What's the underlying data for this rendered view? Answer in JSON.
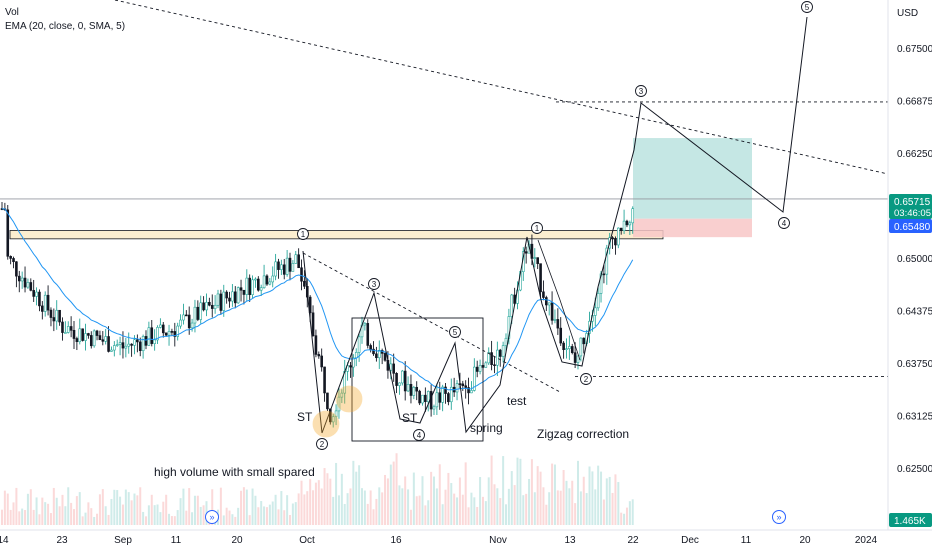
{
  "header": {
    "currency": "USD",
    "legend_volume": "Vol",
    "legend_ema": "EMA (20, close, 0, SMA, 5)"
  },
  "price_scale": {
    "labels": [
      "0.67500",
      "0.66875",
      "0.66250",
      "0.65000",
      "0.64375",
      "0.63750",
      "0.63125",
      "0.62500"
    ],
    "current_price": "0.65715",
    "countdown": "03:46:05",
    "ema_value": "0.65480",
    "volume_value": "1.465K"
  },
  "time_scale": {
    "labels": [
      "14",
      "23",
      "Sep",
      "11",
      "20",
      "Oct",
      "16",
      "Nov",
      "13",
      "22",
      "Dec",
      "11",
      "20",
      "2024"
    ]
  },
  "colors": {
    "up": "#26a69a",
    "down": "#ef5350",
    "candle_body": "#131722",
    "ema": "#2196f3",
    "price_tag": "#089981",
    "ema_tag": "#2962ff",
    "zone_fill": "#fbeed0",
    "target_fill": "#b2dfdb",
    "stop_fill": "#f8c7c7"
  },
  "annotations": {
    "st1": "ST",
    "st2": "ST",
    "spring": "spring",
    "test": "test",
    "zigzag": "Zigzag correction",
    "volume_note": "high volume with small spared",
    "wave_labels": [
      "1",
      "2",
      "3",
      "4",
      "5",
      "1",
      "2",
      "3",
      "4",
      "5"
    ]
  },
  "chart_data": {
    "type": "candlestick",
    "ylim": [
      0.6225,
      0.681
    ],
    "key_levels": {
      "resistance_zone": [
        0.6524,
        0.6534
      ],
      "upper_dashed": 0.6687,
      "lower_dashed": 0.636,
      "long_position": {
        "entry": 0.6548,
        "target": 0.6644,
        "stop": 0.6526
      }
    },
    "wave_points": [
      {
        "label": "1",
        "value": 0.6526
      },
      {
        "label": "2",
        "value": 0.6302
      },
      {
        "label": "3",
        "value": 0.6454
      },
      {
        "label": "4",
        "value": 0.631
      },
      {
        "label": "5",
        "value": 0.6398
      },
      {
        "label": "1",
        "value": 0.6532
      },
      {
        "label": "2",
        "value": 0.6368
      },
      {
        "label": "3",
        "value": 0.6684
      },
      {
        "label": "4",
        "value": 0.6578
      },
      {
        "label": "5",
        "value": 0.679
      }
    ],
    "guide_points": [
      0.6522,
      0.6375,
      0.6301,
      0.6385,
      0.6296,
      0.6418,
      0.6336,
      0.6529,
      0.6378
    ],
    "candle_count": 220
  }
}
